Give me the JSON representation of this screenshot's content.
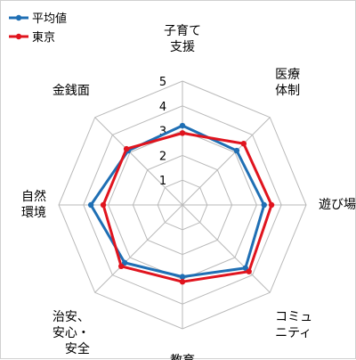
{
  "chart_data": {
    "type": "radar",
    "categories": [
      [
        "子育て",
        "支援"
      ],
      [
        "医療",
        "体制"
      ],
      [
        "遊び場"
      ],
      [
        "コミュ",
        "ニティ"
      ],
      [
        "教育"
      ],
      [
        "治安、",
        "安心・",
        "安全"
      ],
      [
        "自然",
        "環境"
      ],
      [
        "金銭面"
      ]
    ],
    "scale": {
      "min": 0,
      "max": 5,
      "ticks": [
        "1",
        "2",
        "3",
        "4",
        "5"
      ]
    },
    "series": [
      {
        "name": "平均値",
        "color": "#1f6fb4",
        "values": [
          3.2,
          3.1,
          3.3,
          3.6,
          2.9,
          3.3,
          3.7,
          3.1
        ]
      },
      {
        "name": "東京",
        "color": "#e0141e",
        "values": [
          2.9,
          3.5,
          3.6,
          3.8,
          3.1,
          3.5,
          3.2,
          3.2
        ]
      }
    ],
    "grid": "octagon",
    "legend": "top-left"
  }
}
